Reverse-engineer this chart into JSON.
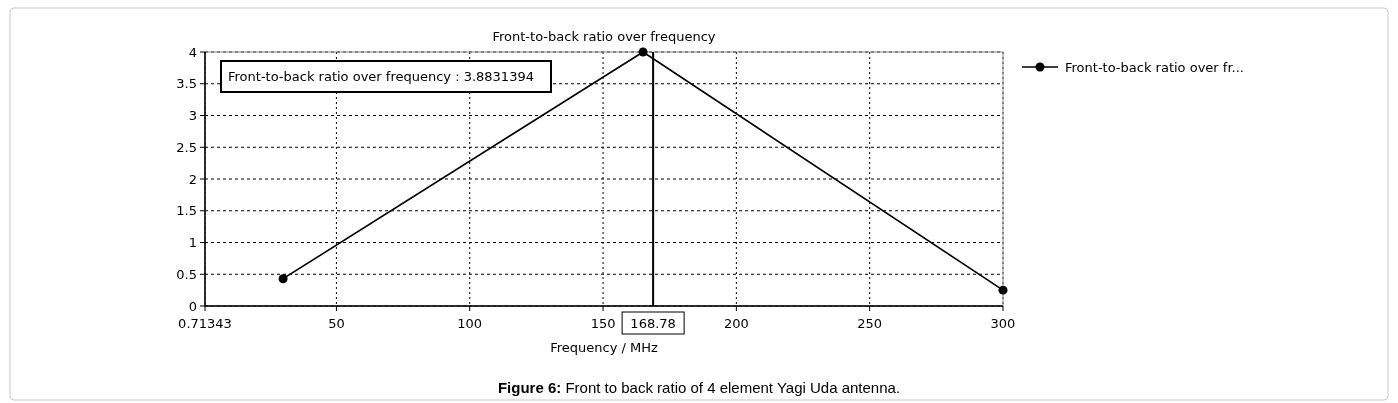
{
  "chart_data": {
    "type": "line",
    "title": "Front-to-back ratio over frequency",
    "xlabel": "Frequency / MHz",
    "x": [
      30,
      165,
      300
    ],
    "series": [
      {
        "name": "Front-to-back ratio over fr...",
        "color": "#000000",
        "values": [
          0.43,
          4.0,
          0.25
        ]
      }
    ],
    "xlim": [
      0.71343,
      300
    ],
    "xticks": [
      0.71343,
      50,
      100,
      150,
      200,
      250,
      300
    ],
    "ylim": [
      0,
      4
    ],
    "yticks": [
      0,
      0.5,
      1,
      1.5,
      2,
      2.5,
      3,
      3.5,
      4
    ],
    "ref_lines": [
      {
        "axis": "x",
        "value": 168.78,
        "label": "168.78",
        "color": "#000000"
      }
    ],
    "annotations": [
      "Front-to-back ratio over frequency : 3.8831394",
      "Figure 6: Front to back ratio of 4 element Yagi Uda antenna."
    ],
    "grid": true,
    "legend": "right",
    "marker": "circle",
    "line_style": "solid"
  }
}
